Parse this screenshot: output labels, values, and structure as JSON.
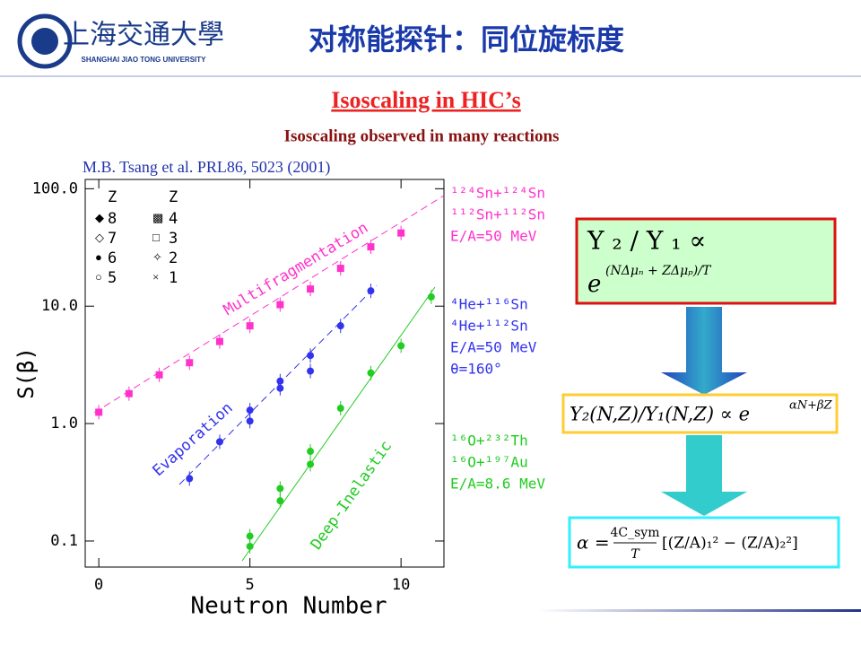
{
  "header": {
    "logo_cn": "上海交通大學",
    "logo_en": "SHANGHAI JIAO TONG UNIVERSITY",
    "title": "对称能探针：同位旋标度"
  },
  "subtitle": "Isoscaling in HIC’s",
  "caption": "Isoscaling observed in many reactions",
  "citation": "M.B. Tsang et al. PRL86, 5023 (2001)",
  "chart_data": {
    "type": "scatter",
    "x_label": "Neutron Number",
    "y_label": "S(β)",
    "log_y": true,
    "xlim": [
      -0.45,
      11.42
    ],
    "ylim": [
      0.06,
      120
    ],
    "xticks": [
      0,
      5,
      10
    ],
    "yticks": [
      0.1,
      {
        "value": 1,
        "label": "1.0"
      },
      {
        "value": 10,
        "label": "10.0"
      },
      {
        "value": 100,
        "label": "100.0"
      }
    ],
    "legend": {
      "header": "Z",
      "left": [
        8,
        7,
        6,
        5
      ],
      "right": [
        4,
        3,
        2,
        1
      ]
    },
    "series": [
      {
        "name": "Multifragmentation",
        "color": "#ff33cc",
        "x": [
          0,
          1,
          2,
          3,
          4,
          5,
          6,
          7,
          8,
          9,
          10
        ],
        "values": [
          1.25,
          1.8,
          2.6,
          3.3,
          5.0,
          6.8,
          10.3,
          14,
          21,
          32,
          42
        ]
      },
      {
        "name": "Evaporation",
        "color": "#3333ee",
        "x": [
          3,
          4,
          5,
          5,
          6,
          6,
          7,
          7,
          8,
          9
        ],
        "values": [
          0.34,
          0.7,
          1.3,
          1.05,
          2.3,
          2.0,
          3.8,
          2.8,
          6.8,
          13.5
        ]
      },
      {
        "name": "Deep-Inelastic",
        "color": "#22cc22",
        "x": [
          5,
          5,
          6,
          6,
          7,
          7,
          8,
          9,
          10,
          11
        ],
        "values": [
          0.11,
          0.09,
          0.28,
          0.22,
          0.58,
          0.45,
          1.35,
          2.7,
          4.6,
          12
        ]
      }
    ]
  },
  "reactions": [
    {
      "color": "#ff33cc",
      "lines": [
        "¹²⁴Sn+¹²⁴Sn",
        "¹¹²Sn+¹¹²Sn",
        "E/A=50 MeV"
      ]
    },
    {
      "color": "#3333ee",
      "lines": [
        "⁴He+¹¹⁶Sn",
        "⁴He+¹¹²Sn",
        "E/A=50 MeV",
        "θ=160°"
      ]
    },
    {
      "color": "#22cc22",
      "lines": [
        "¹⁶O+²³²Th",
        "¹⁶O+¹⁹⁷Au",
        "E/A=8.6 MeV"
      ]
    }
  ],
  "formulas": {
    "f1_top": "Y ₂ / Y ₁ ∝",
    "f1_base": "e",
    "f1_exp": "(NΔμₙ + ZΔμₚ)/T",
    "f2_base": "Y₂(N,Z)/Y₁(N,Z) ∝ e",
    "f2_exp": "αN+βZ",
    "f3_left": "α =",
    "f3_num": "4C_sym",
    "f3_den": "T",
    "f3_right": "[(Z/A)₁² − (Z/A)₂²]"
  }
}
